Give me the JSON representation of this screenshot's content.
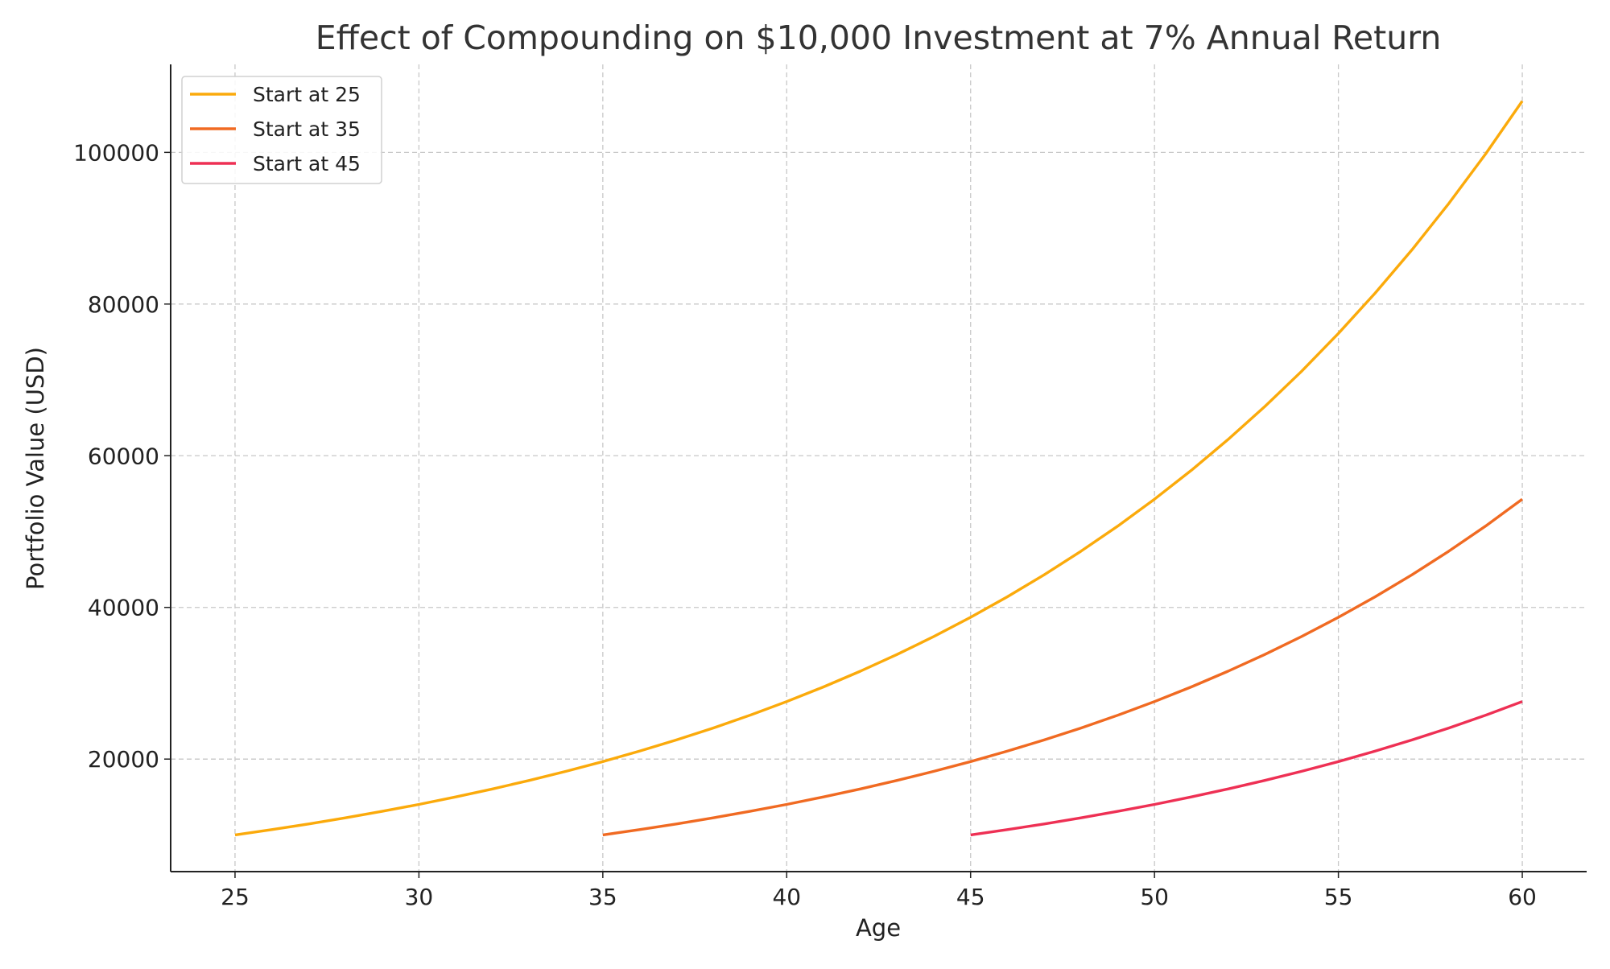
{
  "chart_data": {
    "type": "line",
    "title": "Effect of Compounding on $10,000 Investment at 7% Annual Return",
    "xlabel": "Age",
    "ylabel": "Portfolio Value (USD)",
    "xlim": [
      23.25,
      61.75
    ],
    "ylim": [
      5162,
      111604
    ],
    "xticks": [
      25,
      30,
      35,
      40,
      45,
      50,
      55,
      60
    ],
    "yticks": [
      20000,
      40000,
      60000,
      80000,
      100000
    ],
    "grid": true,
    "legend_position": "top-left",
    "series": [
      {
        "name": "Start at 25",
        "color": "#FBAA0B",
        "start_age": 25,
        "values": [
          10000,
          10700,
          11449,
          12250,
          13108,
          14026,
          15007,
          16058,
          17182,
          18385,
          19672,
          21049,
          22522,
          24098,
          25785,
          27590,
          29522,
          31588,
          33799,
          36165,
          38697,
          41406,
          44304,
          47405,
          50724,
          54274,
          58074,
          62139,
          66488,
          71143,
          76123,
          81451,
          87153,
          93253,
          99781,
          106766
        ]
      },
      {
        "name": "Start at 35",
        "color": "#F06A22",
        "start_age": 35,
        "values": [
          10000,
          10700,
          11449,
          12250,
          13108,
          14026,
          15007,
          16058,
          17182,
          18385,
          19672,
          21049,
          22522,
          24098,
          25785,
          27590,
          29522,
          31588,
          33799,
          36165,
          38697,
          41406,
          44304,
          47405,
          50724,
          54274
        ]
      },
      {
        "name": "Start at 45",
        "color": "#EE3054",
        "start_age": 45,
        "values": [
          10000,
          10700,
          11449,
          12250,
          13108,
          14026,
          15007,
          16058,
          17182,
          18385,
          19672,
          21049,
          22522,
          24098,
          25785,
          27590
        ]
      }
    ]
  }
}
